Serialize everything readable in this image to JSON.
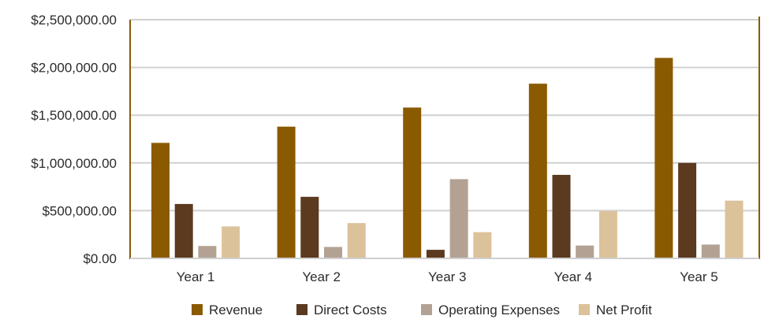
{
  "chart_data": {
    "type": "bar",
    "categories": [
      "Year 1",
      "Year 2",
      "Year 3",
      "Year 4",
      "Year 5"
    ],
    "series": [
      {
        "name": "Revenue",
        "color": "#8a5a00",
        "values": [
          1210000,
          1380000,
          1580000,
          1830000,
          2100000
        ]
      },
      {
        "name": "Direct Costs",
        "color": "#5b3a20",
        "values": [
          570000,
          645000,
          90000,
          875000,
          1000000
        ]
      },
      {
        "name": "Operating Expenses",
        "color": "#b3a293",
        "values": [
          130000,
          120000,
          830000,
          135000,
          145000
        ]
      },
      {
        "name": "Net Profit",
        "color": "#dcc29a",
        "values": [
          335000,
          370000,
          275000,
          495000,
          605000
        ]
      }
    ],
    "ylim": [
      0,
      2500000
    ],
    "yticks": [
      {
        "value": 0,
        "label": "$0.00"
      },
      {
        "value": 500000,
        "label": "$500,000.00"
      },
      {
        "value": 1000000,
        "label": "$1,000,000.00"
      },
      {
        "value": 1500000,
        "label": "$1,500,000.00"
      },
      {
        "value": 2000000,
        "label": "$2,000,000.00"
      },
      {
        "value": 2500000,
        "label": "$2,500,000.00"
      }
    ],
    "grid": true,
    "legend": "bottom-center",
    "gridColor": "#d0d0d0",
    "axisColor": "#8a5a00"
  }
}
